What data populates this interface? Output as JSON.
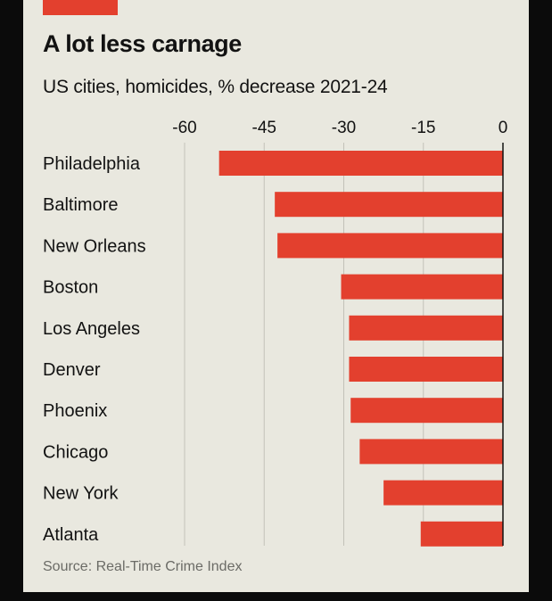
{
  "colors": {
    "bar": "#e3402e",
    "accent": "#e3402e",
    "grid": "#c3c2b9",
    "zero_line": "#121212",
    "text": "#121212",
    "source_text": "#6b6b66"
  },
  "chart_data": {
    "type": "bar",
    "orientation": "horizontal",
    "title": "A lot less carnage",
    "subtitle": "US cities, homicides, % decrease 2021-24",
    "xlim": [
      -60,
      0
    ],
    "ticks": [
      -60,
      -45,
      -30,
      -15,
      0
    ],
    "tick_labels": [
      "-60",
      "-45",
      "-30",
      "-15",
      "0"
    ],
    "categories": [
      "Philadelphia",
      "Baltimore",
      "New Orleans",
      "Boston",
      "Los Angeles",
      "Denver",
      "Phoenix",
      "Chicago",
      "New York",
      "Atlanta"
    ],
    "values": [
      -53.5,
      -43,
      -42.5,
      -30.5,
      -29,
      -29,
      -28.7,
      -27,
      -22.5,
      -15.5
    ],
    "grid": true,
    "source": "Source: Real-Time Crime Index"
  }
}
